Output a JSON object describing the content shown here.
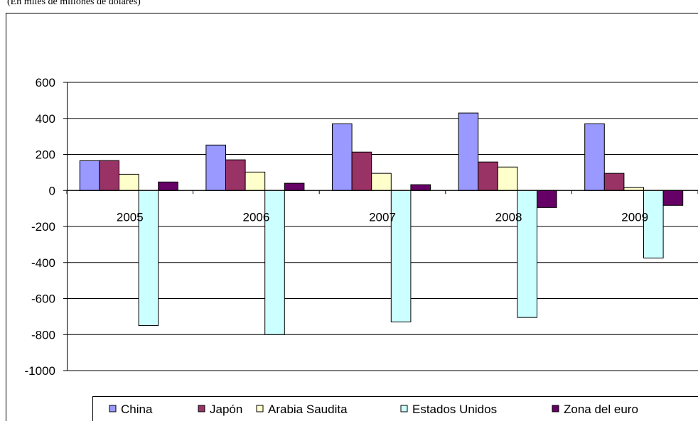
{
  "chart_data": {
    "type": "bar",
    "subtitle": "(En miles de millones de dólares)",
    "categories": [
      "2005",
      "2006",
      "2007",
      "2008",
      "2009"
    ],
    "series": [
      {
        "name": "China",
        "color": "#9999ff",
        "values": [
          165,
          252,
          370,
          430,
          370
        ]
      },
      {
        "name": "Japón",
        "color": "#993366",
        "values": [
          166,
          170,
          213,
          158,
          95
        ]
      },
      {
        "name": "Arabia Saudita",
        "color": "#ffffcc",
        "values": [
          90,
          102,
          95,
          130,
          16
        ]
      },
      {
        "name": "Estados Unidos",
        "color": "#ccffff",
        "values": [
          -750,
          -800,
          -730,
          -705,
          -375
        ]
      },
      {
        "name": "Zona del euro",
        "color": "#660066",
        "values": [
          47,
          40,
          32,
          -95,
          -83
        ]
      }
    ],
    "ylim": [
      -1000,
      600
    ],
    "yticks": [
      -1000,
      -800,
      -600,
      -400,
      -200,
      0,
      200,
      400,
      600
    ],
    "grid": true,
    "legend": "bottom"
  }
}
